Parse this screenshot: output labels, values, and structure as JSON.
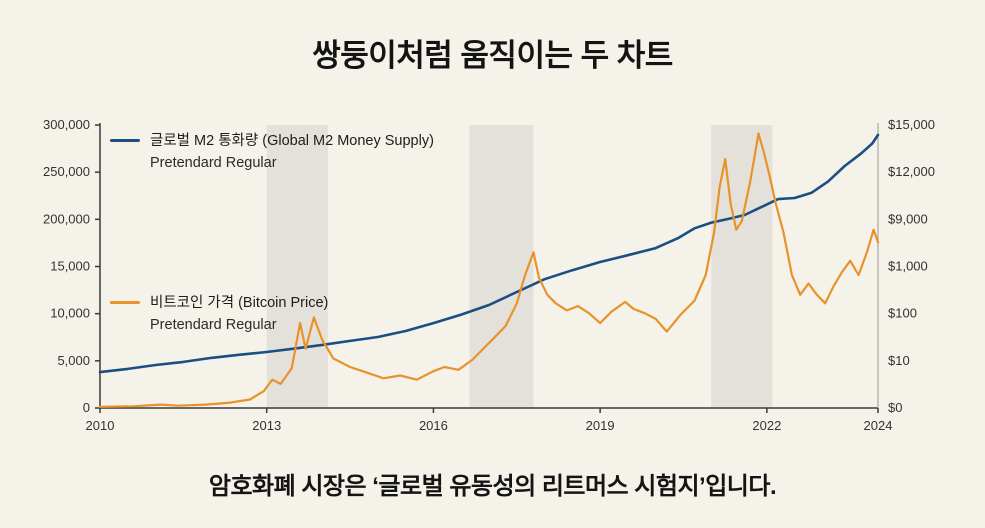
{
  "page": {
    "title": "쌍둥이처럼 움직이는 두 차트",
    "caption": "암호화폐 시장은 ‘글로벌 유동성의 리트머스 시험지’입니다."
  },
  "legend": {
    "m2": {
      "label": "글로벌 M2 통화량 (Global M2 Money Supply)",
      "sub": "Pretendard Regular",
      "color": "#1b4f82"
    },
    "btc": {
      "label": "비트코인 가격 (Bitcoin Price)",
      "sub": "Pretendard Regular",
      "color": "#e8922a"
    }
  },
  "colors": {
    "background": "#f5f2ea",
    "band": "#d8d6d1",
    "m2_line": "#1b4f82",
    "btc_line": "#e8922a",
    "axis": "#3a3a3a",
    "tick_text": "#333333"
  },
  "chart_data": {
    "type": "line",
    "title": "쌍둥이처럼 움직이는 두 차트",
    "x_range": [
      2010,
      2024
    ],
    "x_ticks": [
      "2010",
      "2013",
      "2016",
      "2019",
      "2022",
      "2024"
    ],
    "x_tick_years": [
      2010,
      2013,
      2016,
      2019,
      2022,
      2024
    ],
    "left_axis": {
      "label": "Global M2 Money Supply",
      "ticks_top_to_bottom": [
        "300,000",
        "250,000",
        "200,000",
        "15,000",
        "10,000",
        "5,000",
        "0"
      ]
    },
    "right_axis": {
      "label": "Bitcoin Price",
      "ticks_top_to_bottom": [
        "$15,000",
        "$12,000",
        "$9,000",
        "$1,000",
        "$100",
        "$10",
        "$0"
      ]
    },
    "grid": false,
    "legend_position": "inside-left",
    "y_units": "fraction_of_plot_height (0 = bottom axis, 1 = top of plot)",
    "shaded_bands_years": [
      [
        2013.0,
        2014.1
      ],
      [
        2016.65,
        2017.8
      ],
      [
        2021.0,
        2022.1
      ]
    ],
    "series": [
      {
        "name": "글로벌 M2 통화량 (Global M2 Money Supply)",
        "axis": "left",
        "color": "#1b4f82",
        "width": 2.6,
        "points": [
          [
            2010,
            0.127
          ],
          [
            2010.5,
            0.138
          ],
          [
            2011,
            0.152
          ],
          [
            2011.5,
            0.163
          ],
          [
            2012,
            0.177
          ],
          [
            2012.5,
            0.188
          ],
          [
            2013,
            0.198
          ],
          [
            2013.5,
            0.21
          ],
          [
            2014,
            0.223
          ],
          [
            2014.5,
            0.237
          ],
          [
            2015,
            0.251
          ],
          [
            2015.5,
            0.272
          ],
          [
            2016,
            0.3
          ],
          [
            2016.5,
            0.33
          ],
          [
            2017,
            0.364
          ],
          [
            2017.5,
            0.41
          ],
          [
            2018,
            0.455
          ],
          [
            2018.5,
            0.487
          ],
          [
            2019,
            0.516
          ],
          [
            2019.5,
            0.54
          ],
          [
            2020,
            0.565
          ],
          [
            2020.4,
            0.6
          ],
          [
            2020.7,
            0.635
          ],
          [
            2021,
            0.655
          ],
          [
            2021.3,
            0.668
          ],
          [
            2021.6,
            0.682
          ],
          [
            2021.9,
            0.71
          ],
          [
            2022.2,
            0.738
          ],
          [
            2022.5,
            0.742
          ],
          [
            2022.8,
            0.76
          ],
          [
            2023.1,
            0.8
          ],
          [
            2023.4,
            0.855
          ],
          [
            2023.7,
            0.9
          ],
          [
            2023.9,
            0.935
          ],
          [
            2024,
            0.965
          ]
        ]
      },
      {
        "name": "비트코인 가격 (Bitcoin Price)",
        "axis": "right",
        "color": "#e8922a",
        "width": 2.2,
        "points": [
          [
            2010,
            0.004
          ],
          [
            2010.6,
            0.006
          ],
          [
            2011.1,
            0.012
          ],
          [
            2011.4,
            0.008
          ],
          [
            2011.9,
            0.012
          ],
          [
            2012.3,
            0.018
          ],
          [
            2012.7,
            0.03
          ],
          [
            2012.95,
            0.06
          ],
          [
            2013.1,
            0.1
          ],
          [
            2013.25,
            0.085
          ],
          [
            2013.45,
            0.14
          ],
          [
            2013.6,
            0.3
          ],
          [
            2013.7,
            0.21
          ],
          [
            2013.85,
            0.32
          ],
          [
            2014.0,
            0.24
          ],
          [
            2014.2,
            0.175
          ],
          [
            2014.5,
            0.145
          ],
          [
            2014.8,
            0.125
          ],
          [
            2015.1,
            0.105
          ],
          [
            2015.4,
            0.115
          ],
          [
            2015.7,
            0.1
          ],
          [
            2016.0,
            0.13
          ],
          [
            2016.2,
            0.145
          ],
          [
            2016.45,
            0.135
          ],
          [
            2016.7,
            0.17
          ],
          [
            2016.9,
            0.21
          ],
          [
            2017.1,
            0.25
          ],
          [
            2017.3,
            0.29
          ],
          [
            2017.5,
            0.37
          ],
          [
            2017.65,
            0.47
          ],
          [
            2017.8,
            0.55
          ],
          [
            2017.9,
            0.46
          ],
          [
            2018.05,
            0.4
          ],
          [
            2018.2,
            0.37
          ],
          [
            2018.4,
            0.345
          ],
          [
            2018.6,
            0.36
          ],
          [
            2018.8,
            0.335
          ],
          [
            2019.0,
            0.3
          ],
          [
            2019.2,
            0.34
          ],
          [
            2019.45,
            0.375
          ],
          [
            2019.6,
            0.35
          ],
          [
            2019.8,
            0.335
          ],
          [
            2020.0,
            0.315
          ],
          [
            2020.2,
            0.27
          ],
          [
            2020.45,
            0.33
          ],
          [
            2020.7,
            0.38
          ],
          [
            2020.9,
            0.47
          ],
          [
            2021.05,
            0.62
          ],
          [
            2021.15,
            0.78
          ],
          [
            2021.25,
            0.88
          ],
          [
            2021.35,
            0.72
          ],
          [
            2021.45,
            0.63
          ],
          [
            2021.55,
            0.66
          ],
          [
            2021.7,
            0.8
          ],
          [
            2021.85,
            0.97
          ],
          [
            2021.95,
            0.9
          ],
          [
            2022.05,
            0.82
          ],
          [
            2022.15,
            0.73
          ],
          [
            2022.3,
            0.62
          ],
          [
            2022.45,
            0.47
          ],
          [
            2022.6,
            0.4
          ],
          [
            2022.75,
            0.44
          ],
          [
            2022.9,
            0.4
          ],
          [
            2023.05,
            0.37
          ],
          [
            2023.2,
            0.43
          ],
          [
            2023.35,
            0.48
          ],
          [
            2023.5,
            0.52
          ],
          [
            2023.65,
            0.47
          ],
          [
            2023.8,
            0.55
          ],
          [
            2023.92,
            0.63
          ],
          [
            2024,
            0.585
          ]
        ]
      }
    ]
  }
}
